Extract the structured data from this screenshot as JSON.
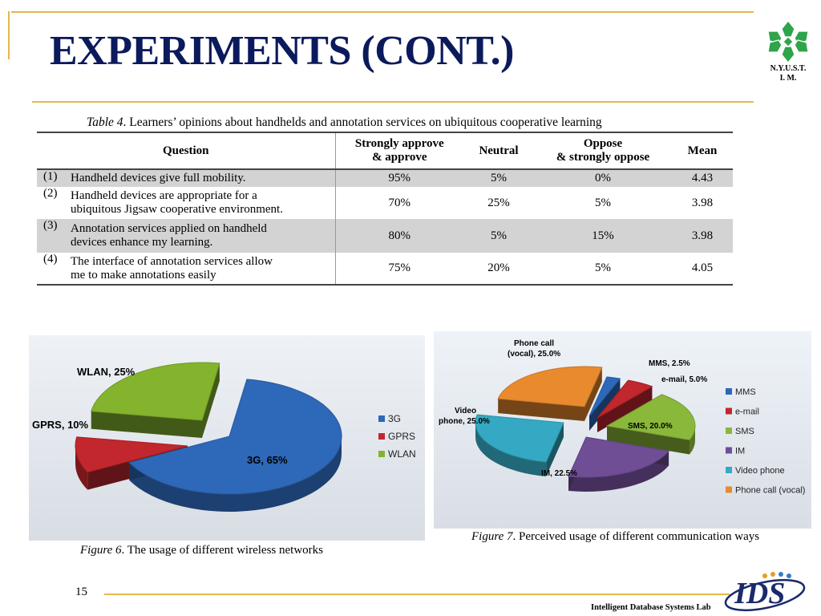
{
  "slide": {
    "title": "EXPERIMENTS (CONT.)",
    "logo_text_1": "N.Y.U.S.T.",
    "logo_text_2": "I. M.",
    "page_number": "15",
    "lab_name": "Intelligent Database Systems Lab",
    "ids_logo_text": "IDS"
  },
  "table": {
    "caption_label": "Table 4",
    "caption_text": ". Learners’ opinions about handhelds and annotation services on ubiquitous cooperative learning",
    "headers": {
      "question": "Question",
      "approve_1": "Strongly approve",
      "approve_2": "& approve",
      "neutral": "Neutral",
      "oppose_1": "Oppose",
      "oppose_2": "& strongly oppose",
      "mean": "Mean"
    },
    "rows": [
      {
        "num": "(1)",
        "q1": "Handheld devices give full mobility.",
        "q2": "",
        "approve": "95%",
        "neutral": "5%",
        "oppose": "0%",
        "mean": "4.43"
      },
      {
        "num": "(2)",
        "q1": "Handheld devices are appropriate for a",
        "q2": "ubiquitous Jigsaw cooperative environment.",
        "approve": "70%",
        "neutral": "25%",
        "oppose": "5%",
        "mean": "3.98"
      },
      {
        "num": "(3)",
        "q1": "Annotation services applied on handheld",
        "q2": "devices enhance my learning.",
        "approve": "80%",
        "neutral": "5%",
        "oppose": "15%",
        "mean": "3.98"
      },
      {
        "num": "(4)",
        "q1": "The interface of annotation services allow",
        "q2": "me to make annotations easily",
        "approve": "75%",
        "neutral": "20%",
        "oppose": "5%",
        "mean": "4.05"
      }
    ]
  },
  "figure6": {
    "caption_label": "Figure 6",
    "caption_text": ". The usage of different wireless networks",
    "slices": [
      {
        "label": "3G",
        "value": 65,
        "data_label": "3G, 65%",
        "color": "#2e68b8"
      },
      {
        "label": "GPRS",
        "value": 10,
        "data_label": "GPRS, 10%",
        "color": "#c1272d"
      },
      {
        "label": "WLAN",
        "value": 25,
        "data_label": "WLAN, 25%",
        "color": "#84b42e"
      }
    ]
  },
  "figure7": {
    "caption_label": "Figure 7",
    "caption_text": ". Perceived usage of different communication ways",
    "slices": [
      {
        "label": "MMS",
        "value": 2.5,
        "data_label": "MMS, 2.5%",
        "color": "#2e68b8"
      },
      {
        "label": "e-mail",
        "value": 5.0,
        "data_label": "e-mail, 5.0%",
        "color": "#c1272d"
      },
      {
        "label": "SMS",
        "value": 20.0,
        "data_label": "SMS, 20.0%",
        "color": "#8ab83a"
      },
      {
        "label": "IM",
        "value": 22.5,
        "data_label": "IM, 22.5%",
        "color": "#6f4e96"
      },
      {
        "label": "Video phone",
        "value": 25.0,
        "data_label_1": "Video",
        "data_label_2": "phone, 25.0%",
        "color": "#35a9c3"
      },
      {
        "label": "Phone call (vocal)",
        "value": 25.0,
        "data_label_1": "Phone call",
        "data_label_2": "(vocal), 25.0%",
        "color": "#e98a2e"
      }
    ]
  },
  "chart_data": [
    {
      "type": "pie",
      "title": "",
      "categories": [
        "3G",
        "GPRS",
        "WLAN"
      ],
      "values": [
        65,
        10,
        25
      ],
      "legend": "right"
    },
    {
      "type": "pie",
      "title": "",
      "categories": [
        "MMS",
        "e-mail",
        "SMS",
        "IM",
        "Video phone",
        "Phone call (vocal)"
      ],
      "values": [
        2.5,
        5.0,
        20.0,
        22.5,
        25.0,
        25.0
      ],
      "legend": "right"
    }
  ]
}
